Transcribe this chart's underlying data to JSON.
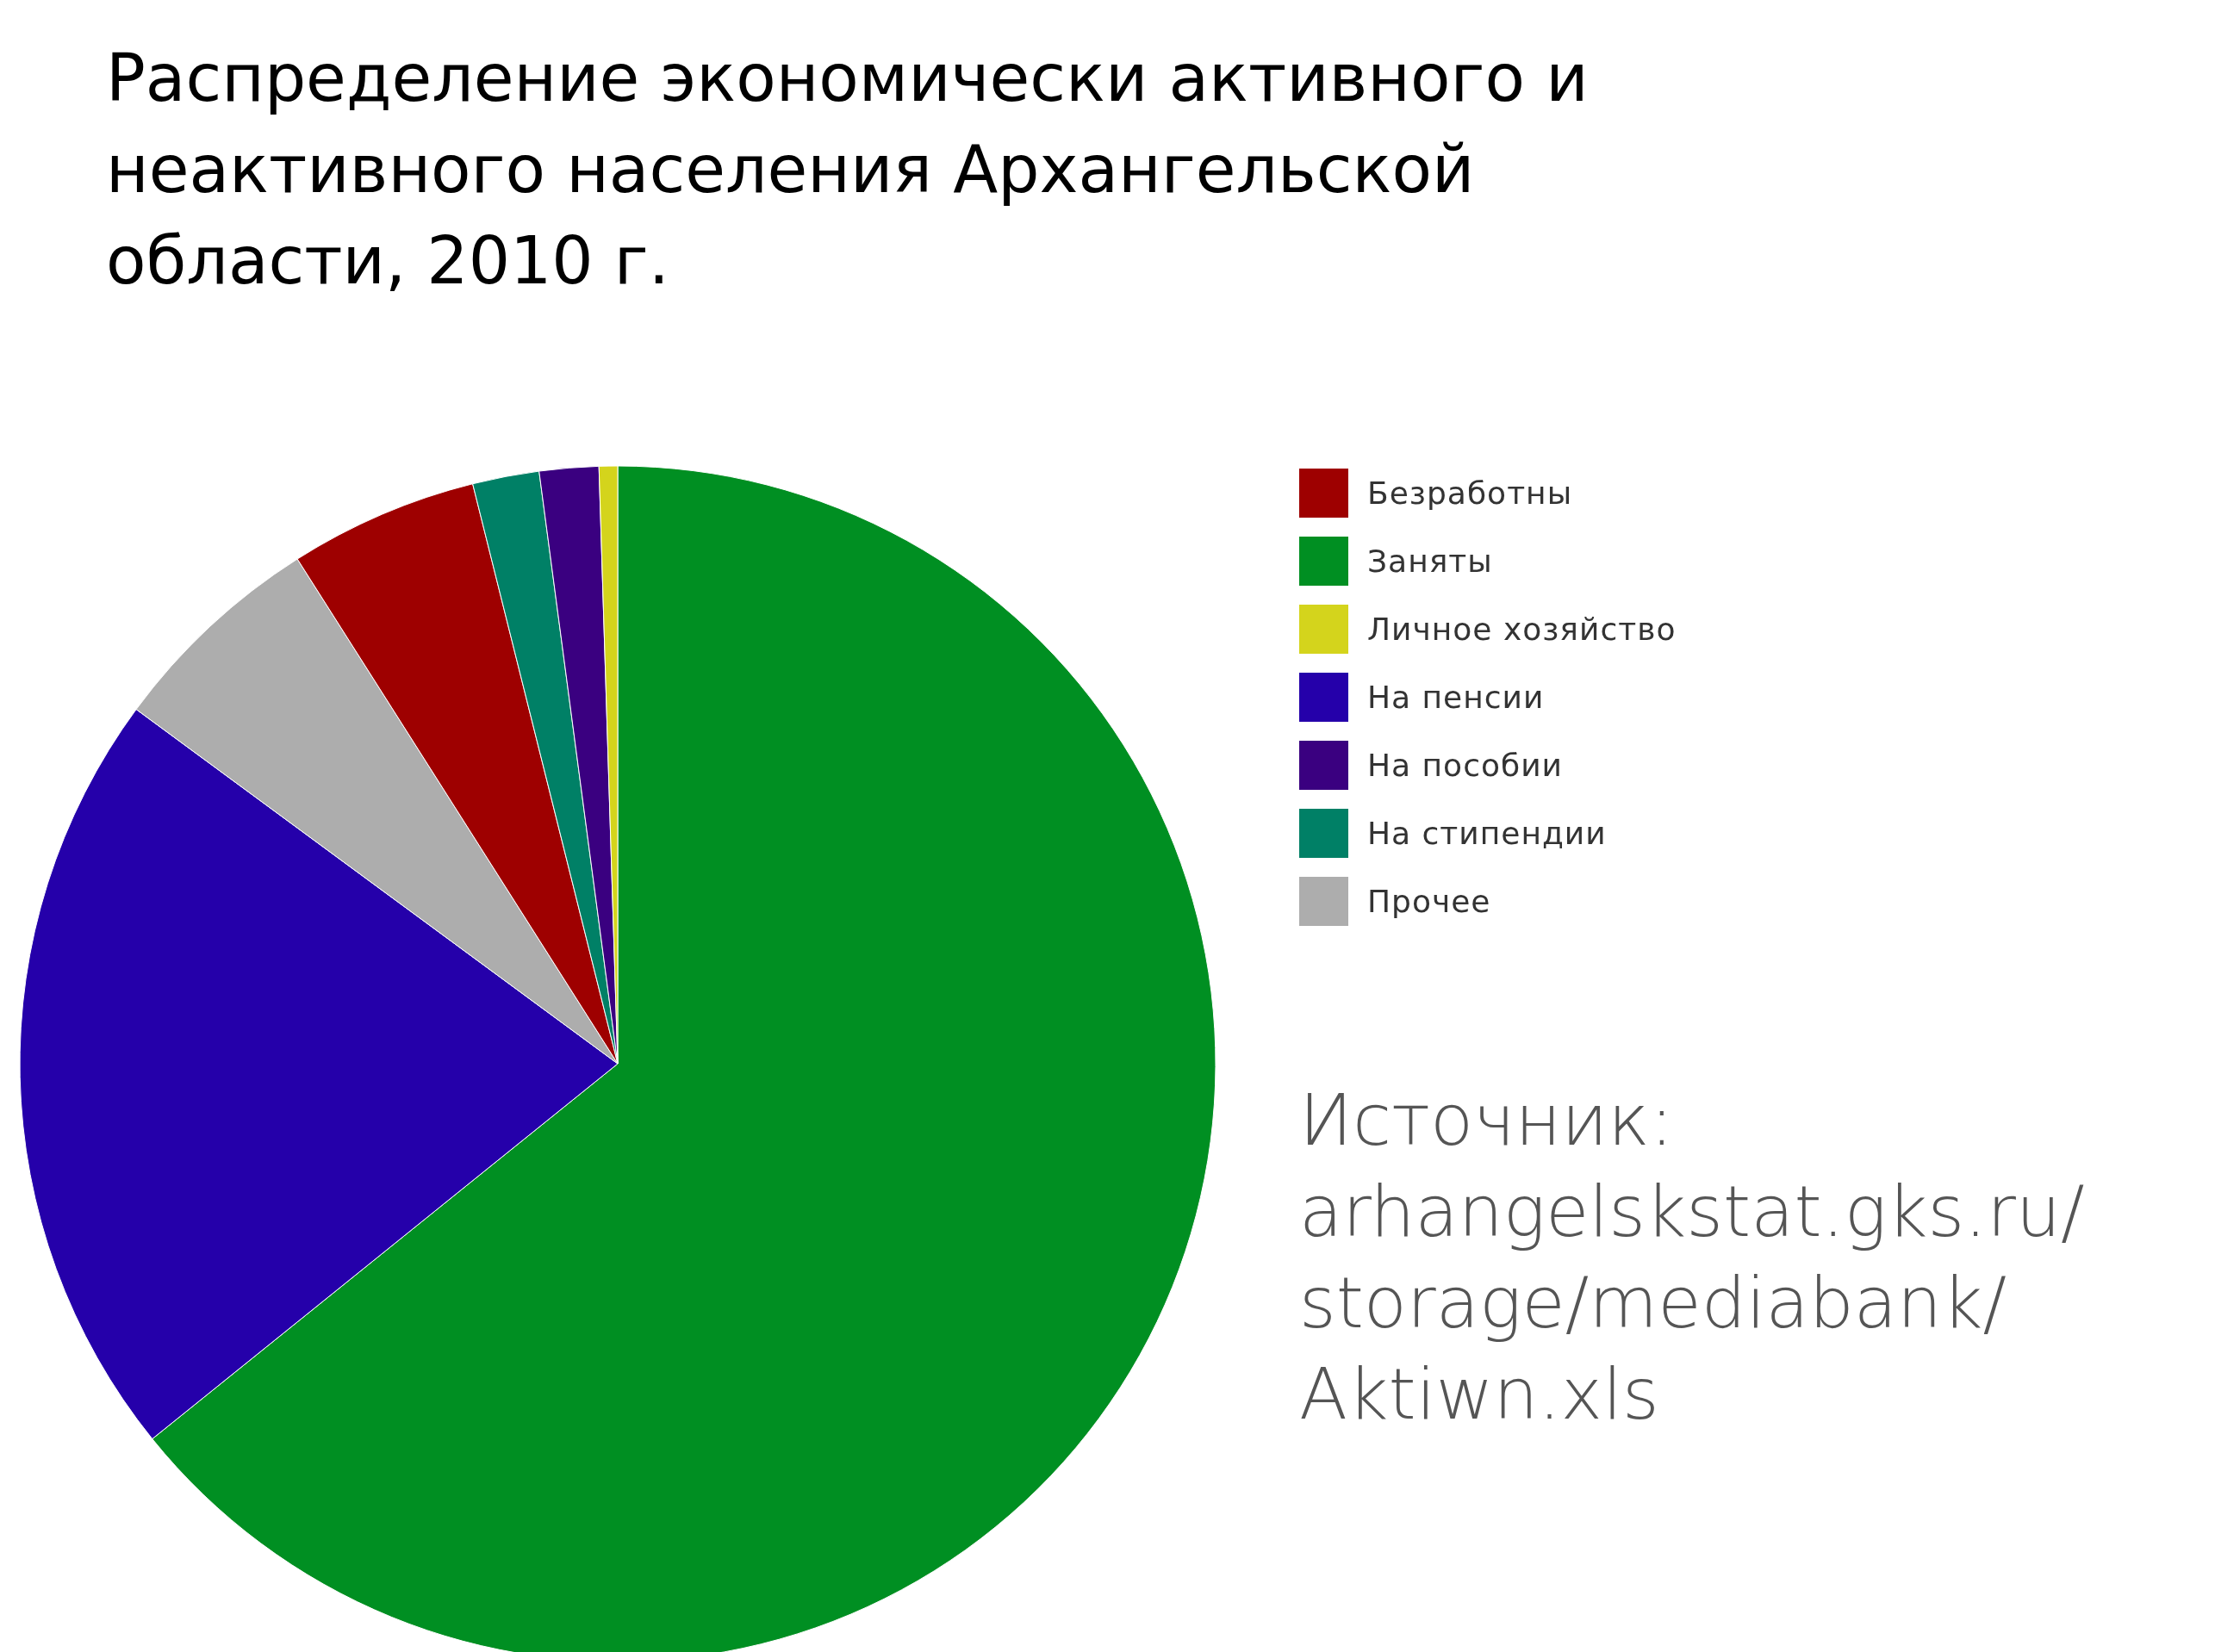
{
  "chart_data": {
    "type": "pie",
    "title": "Распределение экономически активного и неактивного населения Архангельской области, 2010 г.",
    "categories": [
      "Безработны",
      "Заняты",
      "Личное хозяйство",
      "На пенсии",
      "На пособии",
      "На стипендии",
      "Прочее"
    ],
    "values": [
      5.1,
      64.2,
      0.5,
      20.9,
      1.6,
      1.8,
      5.9
    ],
    "colors": [
      "#9e0000",
      "#008f22",
      "#d4d41c",
      "#2500aa",
      "#3a0080",
      "#008066",
      "#adadad"
    ],
    "legend": "top right",
    "annotations": [
      "Источник: arhangelskstat.gks.ru/storage/mediabank/Aktiwn.xls"
    ]
  }
}
